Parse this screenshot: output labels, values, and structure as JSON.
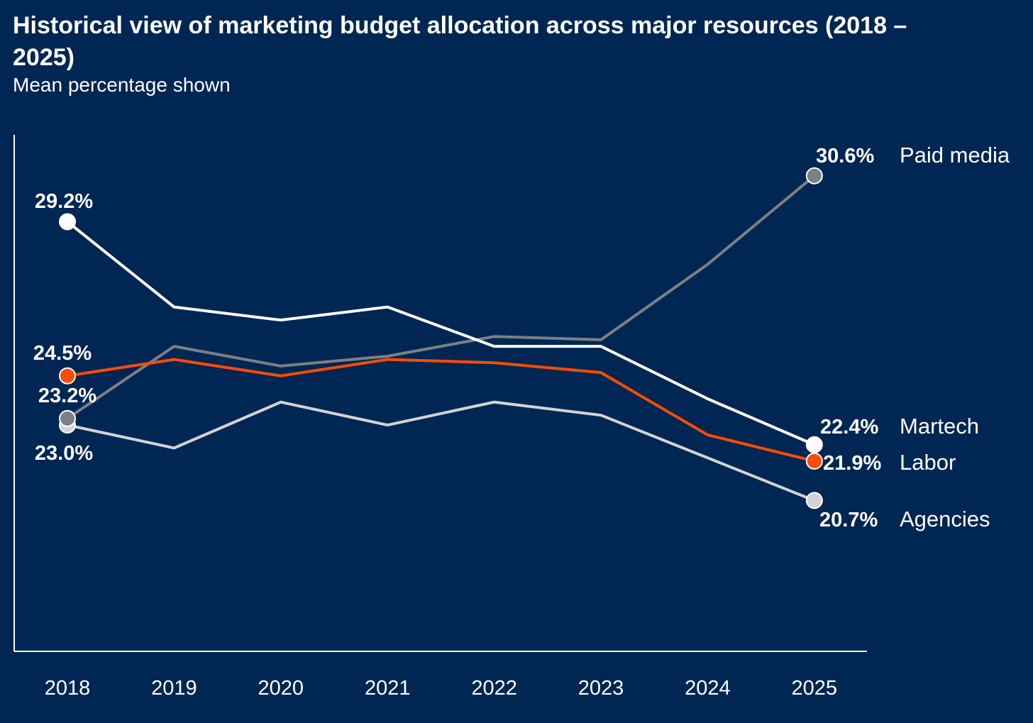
{
  "chart_data": {
    "type": "line",
    "title": "Historical view of marketing budget allocation across major resources (2018 – 2025)",
    "subtitle": "Mean percentage shown",
    "xlabel": "",
    "ylabel": "",
    "x": [
      "2018",
      "2019",
      "2020",
      "2021",
      "2022",
      "2023",
      "2024",
      "2025"
    ],
    "ylim": [
      16.1,
      31.85
    ],
    "grid": false,
    "series": [
      {
        "name": "Paid media",
        "color": "#7b8083",
        "values": [
          23.2,
          25.4,
          24.8,
          25.1,
          25.7,
          25.6,
          27.9,
          30.6
        ],
        "labels": {
          "start": "23.2%",
          "end": "30.6%"
        }
      },
      {
        "name": "Martech",
        "color": "#ffffff",
        "values": [
          29.2,
          26.6,
          26.2,
          26.6,
          25.4,
          25.4,
          23.8,
          22.4
        ],
        "labels": {
          "start": "29.2%",
          "end": "22.4%"
        }
      },
      {
        "name": "Labor",
        "color": "#fc4c02",
        "values": [
          24.5,
          25.0,
          24.5,
          25.0,
          24.9,
          24.6,
          22.7,
          21.9
        ],
        "labels": {
          "start": "24.5%",
          "end": "21.9%"
        }
      },
      {
        "name": "Agencies",
        "color": "#d3d3d5",
        "values": [
          23.0,
          22.3,
          23.7,
          23.0,
          23.7,
          23.3,
          22.0,
          20.7
        ],
        "labels": {
          "start": "23.0%",
          "end": "20.7%"
        }
      }
    ]
  }
}
